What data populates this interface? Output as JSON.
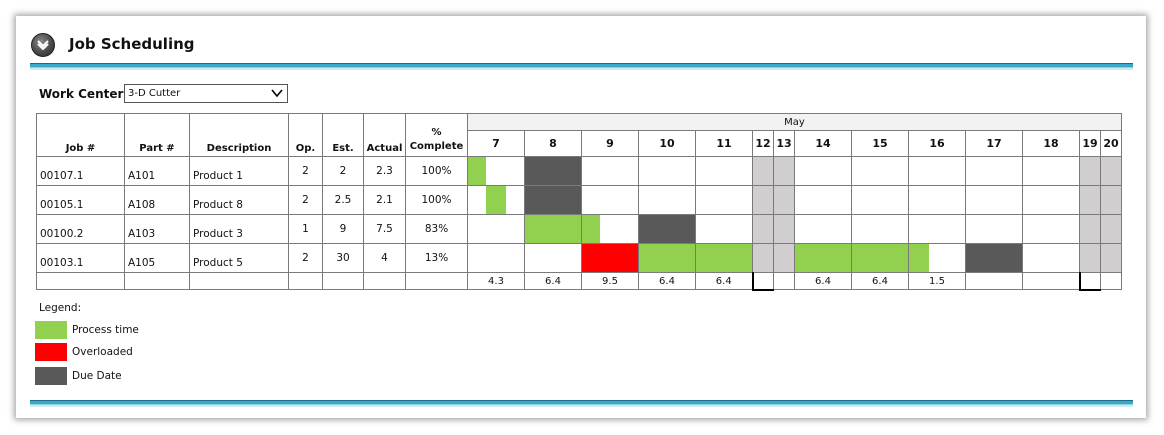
{
  "header": {
    "title": "Job Scheduling",
    "toggle_icon": "chevron-down-icon"
  },
  "work_center": {
    "label": "Work Center",
    "value": "3-D Cutter"
  },
  "table": {
    "columns": [
      "Job #",
      "Part #",
      "Description",
      "Op.",
      "Est.",
      "Actual",
      "%",
      "Complete"
    ],
    "month": "May",
    "days": [
      "7",
      "8",
      "9",
      "10",
      "11",
      "12",
      "13",
      "14",
      "15",
      "16",
      "17",
      "18",
      "19",
      "20"
    ],
    "weekend_days": [
      "12",
      "13",
      "19",
      "20"
    ],
    "rows": [
      {
        "job": "00107.1",
        "part": "A101",
        "desc": "Product 1",
        "op": "2",
        "est": "2",
        "actual": "2.3",
        "pct": "100%"
      },
      {
        "job": "00105.1",
        "part": "A108",
        "desc": "Product 8",
        "op": "2",
        "est": "2.5",
        "actual": "2.1",
        "pct": "100%"
      },
      {
        "job": "00100.2",
        "part": "A103",
        "desc": "Product 3",
        "op": "1",
        "est": "9",
        "actual": "7.5",
        "pct": "83%"
      },
      {
        "job": "00103.1",
        "part": "A105",
        "desc": "Product 5",
        "op": "2",
        "est": "30",
        "actual": "4",
        "pct": "13%"
      }
    ],
    "totals": [
      "4.3",
      "6.4",
      "9.5",
      "6.4",
      "6.4",
      "",
      "",
      "6.4",
      "6.4",
      "1.5",
      "",
      "",
      "",
      ""
    ],
    "schedule": [
      [
        {
          "day": "7",
          "type": "process",
          "from": 0,
          "to": 0.33
        },
        {
          "day": "8",
          "type": "due",
          "from": 0,
          "to": 1
        }
      ],
      [
        {
          "day": "7",
          "type": "process",
          "from": 0.33,
          "to": 0.67
        },
        {
          "day": "8",
          "type": "due",
          "from": 0,
          "to": 1
        }
      ],
      [
        {
          "day": "8",
          "type": "process",
          "from": 0,
          "to": 1
        },
        {
          "day": "9",
          "type": "process",
          "from": 0,
          "to": 0.33
        },
        {
          "day": "10",
          "type": "due",
          "from": 0,
          "to": 1
        }
      ],
      [
        {
          "day": "9",
          "type": "overloaded",
          "from": 0,
          "to": 1
        },
        {
          "day": "10",
          "type": "process",
          "from": 0,
          "to": 1
        },
        {
          "day": "11",
          "type": "process",
          "from": 0,
          "to": 1
        },
        {
          "day": "14",
          "type": "process",
          "from": 0,
          "to": 1
        },
        {
          "day": "15",
          "type": "process",
          "from": 0,
          "to": 1
        },
        {
          "day": "16",
          "type": "process",
          "from": 0,
          "to": 0.35
        },
        {
          "day": "17",
          "type": "due",
          "from": 0,
          "to": 1
        }
      ]
    ]
  },
  "legend": {
    "title": "Legend:",
    "items": [
      {
        "label": "Process time",
        "color": "#92d050"
      },
      {
        "label": "Overloaded",
        "color": "#ff0000"
      },
      {
        "label": "Due Date",
        "color": "#595959"
      }
    ]
  },
  "colors": {
    "process": "#92d050",
    "overloaded": "#ff0000",
    "due": "#595959",
    "weekend": "#d0cece",
    "accent": "#3aa8c8"
  }
}
